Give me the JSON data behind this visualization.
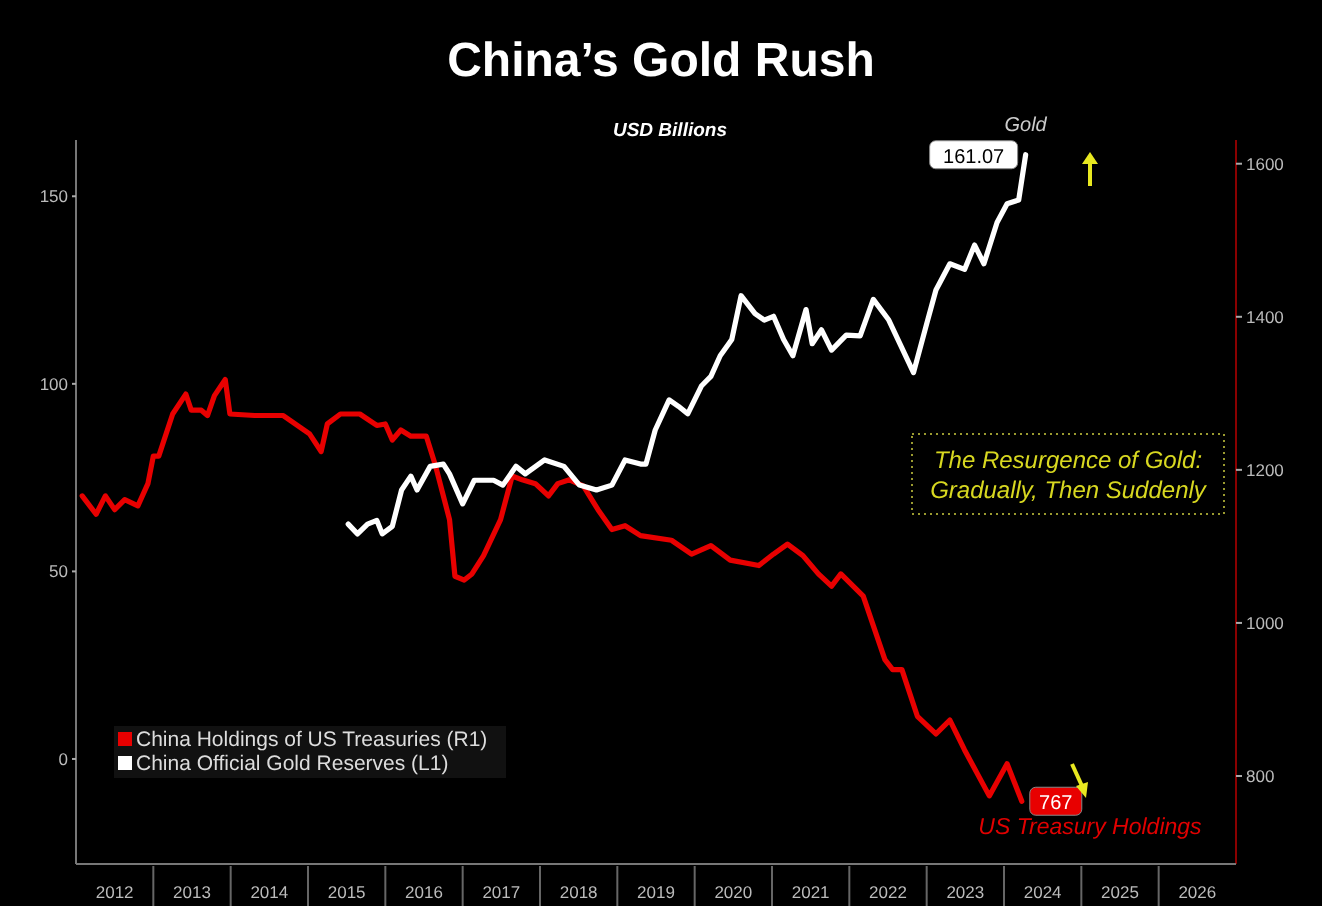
{
  "chart_data": {
    "type": "line",
    "title": "China’s Gold Rush",
    "subtitle": "USD Billions",
    "xlim": [
      2012,
      2027
    ],
    "xticks": [
      {
        "value": 2012.5,
        "label": "2012"
      },
      {
        "value": 2013.5,
        "label": "2013"
      },
      {
        "value": 2014.5,
        "label": "2014"
      },
      {
        "value": 2015.5,
        "label": "2015"
      },
      {
        "value": 2016.5,
        "label": "2016"
      },
      {
        "value": 2017.5,
        "label": "2017"
      },
      {
        "value": 2018.5,
        "label": "2018"
      },
      {
        "value": 2019.5,
        "label": "2019"
      },
      {
        "value": 2020.5,
        "label": "2020"
      },
      {
        "value": 2021.5,
        "label": "2021"
      },
      {
        "value": 2022.5,
        "label": "2022"
      },
      {
        "value": 2023.5,
        "label": "2023"
      },
      {
        "value": 2024.5,
        "label": "2024"
      },
      {
        "value": 2025.5,
        "label": "2025"
      },
      {
        "value": 2026.5,
        "label": "2026"
      }
    ],
    "ylim": [
      -28,
      165
    ],
    "yticks": [
      0,
      50,
      100,
      150
    ],
    "y2lim": [
      685,
      1631
    ],
    "y2ticks": [
      800,
      1000,
      1200,
      1400,
      1600
    ],
    "legend": "bottom left",
    "grid": false,
    "marker": "none",
    "line_style": "solid",
    "series": [
      {
        "name": "China Holdings of US Treasuries (R1)",
        "color": "#e80000",
        "axis": "y2",
        "x": [
          2012.08,
          2012.26,
          2012.38,
          2012.5,
          2012.63,
          2012.8,
          2012.93,
          2013.0,
          2013.07,
          2013.25,
          2013.42,
          2013.49,
          2013.62,
          2013.7,
          2013.79,
          2013.93,
          2013.99,
          2014.31,
          2014.68,
          2015.02,
          2015.17,
          2015.25,
          2015.42,
          2015.67,
          2015.89,
          2016.0,
          2016.09,
          2016.2,
          2016.33,
          2016.53,
          2016.65,
          2016.83,
          2016.9,
          2017.02,
          2017.12,
          2017.27,
          2017.49,
          2017.64,
          2017.77,
          2017.94,
          2018.11,
          2018.23,
          2018.38,
          2018.56,
          2018.75,
          2018.93,
          2019.1,
          2019.3,
          2019.7,
          2019.96,
          2020.21,
          2020.46,
          2020.83,
          2021.02,
          2021.2,
          2021.4,
          2021.6,
          2021.77,
          2021.89,
          2022.18,
          2022.46,
          2022.56,
          2022.68,
          2022.88,
          2023.12,
          2023.3,
          2023.49,
          2023.81,
          2024.04,
          2024.23
        ],
        "values": [
          1166,
          1142,
          1166,
          1148,
          1161,
          1153,
          1182,
          1218,
          1218,
          1273,
          1299,
          1278,
          1278,
          1271,
          1297,
          1318,
          1273,
          1271,
          1271,
          1247,
          1224,
          1260,
          1273,
          1273,
          1258,
          1260,
          1239,
          1252,
          1244,
          1244,
          1205,
          1135,
          1061,
          1056,
          1064,
          1088,
          1135,
          1192,
          1187,
          1182,
          1166,
          1182,
          1187,
          1179,
          1148,
          1122,
          1127,
          1114,
          1108,
          1090,
          1101,
          1082,
          1075,
          1090,
          1103,
          1088,
          1064,
          1048,
          1064,
          1035,
          952,
          939,
          939,
          878,
          855,
          873,
          834,
          774,
          816,
          767
        ],
        "value_labels": [
          null,
          null,
          null,
          null,
          null,
          null,
          null,
          null,
          null,
          null,
          null,
          null,
          null,
          null,
          null,
          null,
          null,
          null,
          null,
          null,
          null,
          null,
          null,
          null,
          null,
          null,
          null,
          null,
          null,
          null,
          null,
          null,
          null,
          null,
          null,
          null,
          null,
          null,
          null,
          null,
          null,
          null,
          null,
          null,
          null,
          null,
          null,
          null,
          null,
          null,
          null,
          null,
          null,
          null,
          null,
          null,
          null,
          null,
          null,
          null,
          null,
          null,
          null,
          null,
          null,
          null,
          null,
          null,
          null,
          "767"
        ]
      },
      {
        "name": "China Official Gold Reserves (L1)",
        "color": "#ffffff",
        "x": [
          2015.52,
          2015.64,
          2015.77,
          2015.89,
          2015.96,
          2016.09,
          2016.21,
          2016.33,
          2016.41,
          2016.58,
          2016.75,
          2016.83,
          2017.0,
          2017.15,
          2017.4,
          2017.52,
          2017.69,
          2017.81,
          2018.06,
          2018.31,
          2018.51,
          2018.73,
          2018.93,
          2019.1,
          2019.3,
          2019.37,
          2019.49,
          2019.67,
          2019.79,
          2019.91,
          2020.09,
          2020.21,
          2020.33,
          2020.48,
          2020.6,
          2020.78,
          2020.9,
          2021.02,
          2021.15,
          2021.27,
          2021.44,
          2021.52,
          2021.64,
          2021.77,
          2021.96,
          2022.14,
          2022.31,
          2022.51,
          2022.83,
          2023.0,
          2023.12,
          2023.3,
          2023.49,
          2023.62,
          2023.74,
          2023.91,
          2024.04,
          2024.19,
          2024.28
        ],
        "values": [
          62.6,
          60,
          62.6,
          63.6,
          60,
          62,
          71.7,
          75.4,
          71.7,
          78,
          78.6,
          76,
          68,
          74.3,
          74.3,
          73,
          78,
          76,
          79.7,
          78,
          73,
          71.7,
          73,
          79.7,
          78.6,
          78.6,
          87.7,
          95.7,
          94,
          92,
          99.5,
          102,
          107.5,
          111.8,
          123.5,
          118.7,
          117,
          118,
          111.8,
          107.5,
          119.8,
          110.7,
          114.4,
          109,
          113,
          112.8,
          122.5,
          117,
          103,
          116,
          125,
          132,
          130.5,
          137,
          132,
          143,
          148,
          149,
          161.07
        ],
        "value_labels": [
          null,
          null,
          null,
          null,
          null,
          null,
          null,
          null,
          null,
          null,
          null,
          null,
          null,
          null,
          null,
          null,
          null,
          null,
          null,
          null,
          null,
          null,
          null,
          null,
          null,
          null,
          null,
          null,
          null,
          null,
          null,
          null,
          null,
          null,
          null,
          null,
          null,
          null,
          null,
          null,
          null,
          null,
          null,
          null,
          null,
          null,
          null,
          null,
          null,
          null,
          null,
          null,
          null,
          null,
          null,
          null,
          null,
          null,
          "161.07"
        ]
      }
    ],
    "annotations": [
      {
        "text": "Gold",
        "x": 2024.28,
        "y": 161.07
      },
      "US Treasury Holdings",
      "The Resurgence of Gold: Gradually, Then Suddenly"
    ]
  }
}
